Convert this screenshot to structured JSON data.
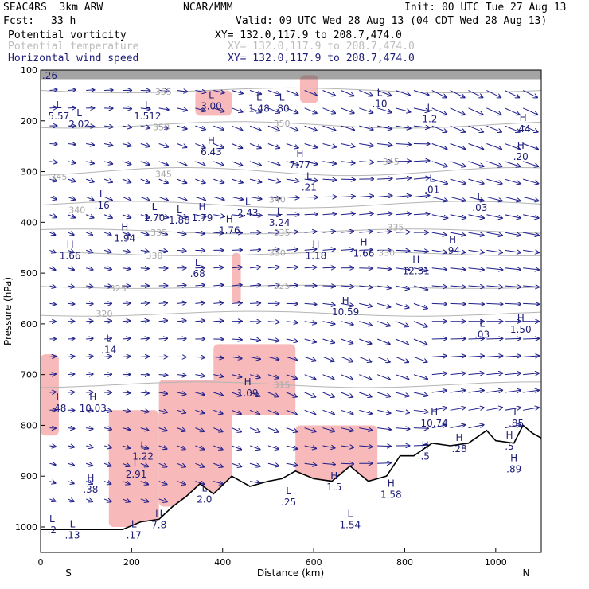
{
  "header": {
    "model": "SEAC4RS  3km ARW",
    "org": "NCAR/MMM",
    "init": "Init: 00 UTC Tue 27 Aug 13",
    "fcst_label": "Fcst:",
    "fcst_value": "33 h",
    "valid": "Valid: 09 UTC Wed 28 Aug 13 (04 CDT Wed 28 Aug 13)",
    "field1": "Potential vorticity",
    "field2": "Potential temperature",
    "field3": "Horizontal wind speed",
    "xy": "XY= 132.0,117.9 to 208.7,474.0"
  },
  "colors": {
    "pv_fill": "#f7b9b9",
    "theta_line": "#b4b4b4",
    "wind": "#1e1e8c",
    "terrain": "#000000",
    "cloud": "#5a5a5a"
  },
  "chart_data": {
    "type": "cross-section",
    "xlabel": "Distance (km)",
    "ylabel": "Pressure (hPa)",
    "xlim": [
      0,
      1100
    ],
    "ylim": [
      1050,
      100
    ],
    "xticks": [
      "0",
      "200",
      "400",
      "600",
      "800",
      "1000"
    ],
    "yticks": [
      "100",
      "200",
      "300",
      "400",
      "500",
      "600",
      "700",
      "800",
      "900",
      "1000"
    ],
    "south_label": "S",
    "north_label": "N",
    "theta_contours": [
      {
        "label": "355",
        "x": 270,
        "p": 142
      },
      {
        "label": "350",
        "x": 265,
        "p": 212
      },
      {
        "label": "350",
        "x": 530,
        "p": 205
      },
      {
        "label": "345",
        "x": 40,
        "p": 310
      },
      {
        "label": "345",
        "x": 270,
        "p": 305
      },
      {
        "label": "345",
        "x": 770,
        "p": 280
      },
      {
        "label": "340",
        "x": 80,
        "p": 375
      },
      {
        "label": "340",
        "x": 520,
        "p": 355
      },
      {
        "label": "335",
        "x": 260,
        "p": 420
      },
      {
        "label": "335",
        "x": 530,
        "p": 420
      },
      {
        "label": "335",
        "x": 780,
        "p": 410
      },
      {
        "label": "330",
        "x": 250,
        "p": 465
      },
      {
        "label": "330",
        "x": 520,
        "p": 460
      },
      {
        "label": "330",
        "x": 760,
        "p": 460
      },
      {
        "label": "325",
        "x": 170,
        "p": 530
      },
      {
        "label": "325",
        "x": 530,
        "p": 525
      },
      {
        "label": "320",
        "x": 140,
        "p": 580
      },
      {
        "label": "315",
        "x": 530,
        "p": 720
      }
    ],
    "extrema": [
      {
        "kind": "L",
        "value": ".26",
        "x": 20,
        "p": 105
      },
      {
        "kind": "L",
        "value": "5.57",
        "x": 40,
        "p": 185
      },
      {
        "kind": "L",
        "value": "2.02",
        "x": 85,
        "p": 200
      },
      {
        "kind": "L",
        "value": "1.512",
        "x": 235,
        "p": 185
      },
      {
        "kind": "L",
        "value": "3.00",
        "x": 375,
        "p": 165
      },
      {
        "kind": "L",
        "value": "1.48",
        "x": 480,
        "p": 170
      },
      {
        "kind": "L",
        "value": ".80",
        "x": 530,
        "p": 170
      },
      {
        "kind": "L",
        "value": ".10",
        "x": 745,
        "p": 160
      },
      {
        "kind": "L",
        "value": "1.2",
        "x": 855,
        "p": 190
      },
      {
        "kind": "H",
        "value": "6.43",
        "x": 375,
        "p": 255
      },
      {
        "kind": "H",
        "value": "7.77",
        "x": 570,
        "p": 280
      },
      {
        "kind": "H",
        "value": ".44",
        "x": 1060,
        "p": 210
      },
      {
        "kind": "H",
        "value": ".20",
        "x": 1055,
        "p": 265
      },
      {
        "kind": "L",
        "value": ".21",
        "x": 590,
        "p": 325
      },
      {
        "kind": "L",
        "value": ".01",
        "x": 860,
        "p": 330
      },
      {
        "kind": "L",
        "value": ".16",
        "x": 135,
        "p": 360
      },
      {
        "kind": "L",
        "value": "1.70",
        "x": 250,
        "p": 385
      },
      {
        "kind": "L",
        "value": "1.88",
        "x": 305,
        "p": 390
      },
      {
        "kind": "H",
        "value": "1.79",
        "x": 355,
        "p": 385
      },
      {
        "kind": "L",
        "value": "2.43",
        "x": 455,
        "p": 375
      },
      {
        "kind": "L",
        "value": "3.24",
        "x": 525,
        "p": 395
      },
      {
        "kind": "L",
        "value": ".03",
        "x": 965,
        "p": 365
      },
      {
        "kind": "H",
        "value": "1.94",
        "x": 185,
        "p": 425
      },
      {
        "kind": "H",
        "value": "1.76",
        "x": 415,
        "p": 410
      },
      {
        "kind": "H",
        "value": "1.66",
        "x": 65,
        "p": 460
      },
      {
        "kind": "H",
        "value": "1.18",
        "x": 605,
        "p": 460
      },
      {
        "kind": "H",
        "value": "1.66",
        "x": 710,
        "p": 455
      },
      {
        "kind": "H",
        "value": ".94",
        "x": 905,
        "p": 450
      },
      {
        "kind": "L",
        "value": ".68",
        "x": 345,
        "p": 495
      },
      {
        "kind": "H",
        "value": "12.31",
        "x": 825,
        "p": 490
      },
      {
        "kind": "H",
        "value": "10.59",
        "x": 670,
        "p": 570
      },
      {
        "kind": "L",
        "value": ".03",
        "x": 970,
        "p": 615
      },
      {
        "kind": "H",
        "value": "1.50",
        "x": 1055,
        "p": 605
      },
      {
        "kind": "L",
        "value": ".14",
        "x": 150,
        "p": 645
      },
      {
        "kind": "H",
        "value": "1.09",
        "x": 455,
        "p": 730
      },
      {
        "kind": "L",
        "value": ".48",
        "x": 40,
        "p": 760
      },
      {
        "kind": "H",
        "value": "10.03",
        "x": 115,
        "p": 760
      },
      {
        "kind": "H",
        "value": "10.74",
        "x": 865,
        "p": 790
      },
      {
        "kind": "L",
        "value": ".85",
        "x": 1045,
        "p": 790
      },
      {
        "kind": "L",
        "value": "1.22",
        "x": 225,
        "p": 855
      },
      {
        "kind": "L",
        "value": "2.91",
        "x": 210,
        "p": 890
      },
      {
        "kind": "H",
        "value": ".5",
        "x": 845,
        "p": 855
      },
      {
        "kind": "H",
        "value": ".28",
        "x": 920,
        "p": 840
      },
      {
        "kind": "H",
        "value": ".5",
        "x": 1030,
        "p": 835
      },
      {
        "kind": "H",
        "value": ".89",
        "x": 1040,
        "p": 880
      },
      {
        "kind": "H",
        "value": ".38",
        "x": 110,
        "p": 920
      },
      {
        "kind": "H",
        "value": "1.5",
        "x": 645,
        "p": 915
      },
      {
        "kind": "H",
        "value": "1.58",
        "x": 770,
        "p": 930
      },
      {
        "kind": "L",
        "value": "2.0",
        "x": 360,
        "p": 940
      },
      {
        "kind": "L",
        "value": ".25",
        "x": 545,
        "p": 945
      },
      {
        "kind": "L",
        "value": "1.54",
        "x": 680,
        "p": 990
      },
      {
        "kind": "L",
        "value": ".2",
        "x": 25,
        "p": 1000
      },
      {
        "kind": "L",
        "value": ".13",
        "x": 70,
        "p": 1010
      },
      {
        "kind": "L",
        "value": ".17",
        "x": 205,
        "p": 1010
      },
      {
        "kind": "H",
        "value": "7.8",
        "x": 260,
        "p": 990
      }
    ],
    "terrain": [
      [
        0,
        1005
      ],
      [
        100,
        1005
      ],
      [
        180,
        1005
      ],
      [
        220,
        990
      ],
      [
        260,
        985
      ],
      [
        290,
        960
      ],
      [
        320,
        940
      ],
      [
        350,
        915
      ],
      [
        380,
        935
      ],
      [
        420,
        900
      ],
      [
        460,
        920
      ],
      [
        500,
        910
      ],
      [
        530,
        905
      ],
      [
        560,
        890
      ],
      [
        600,
        905
      ],
      [
        640,
        910
      ],
      [
        680,
        880
      ],
      [
        720,
        910
      ],
      [
        760,
        900
      ],
      [
        790,
        860
      ],
      [
        820,
        860
      ],
      [
        860,
        835
      ],
      [
        900,
        840
      ],
      [
        940,
        835
      ],
      [
        980,
        810
      ],
      [
        1000,
        830
      ],
      [
        1040,
        835
      ],
      [
        1060,
        800
      ],
      [
        1080,
        815
      ],
      [
        1100,
        825
      ]
    ],
    "pv_regions": [
      {
        "x0": 0,
        "x1": 40,
        "p0": 660,
        "p1": 820
      },
      {
        "x0": 150,
        "x1": 260,
        "p0": 770,
        "p1": 1000
      },
      {
        "x0": 260,
        "x1": 420,
        "p0": 710,
        "p1": 960
      },
      {
        "x0": 380,
        "x1": 560,
        "p0": 640,
        "p1": 780
      },
      {
        "x0": 560,
        "x1": 740,
        "p0": 800,
        "p1": 920
      },
      {
        "x0": 340,
        "x1": 420,
        "p0": 140,
        "p1": 190
      },
      {
        "x0": 570,
        "x1": 610,
        "p0": 110,
        "p1": 165
      },
      {
        "x0": 420,
        "x1": 440,
        "p0": 460,
        "p1": 560
      }
    ]
  }
}
